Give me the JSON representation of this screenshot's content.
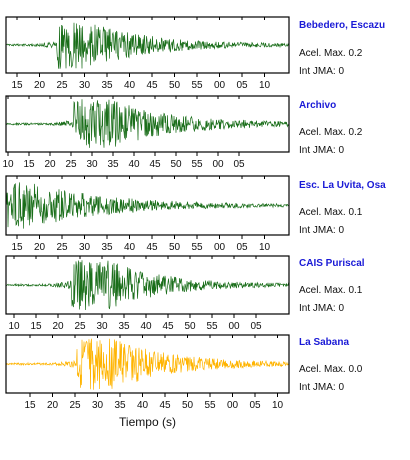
{
  "colors": {
    "trace": "#1a6e1a",
    "highlight": "#ffb400",
    "station_name": "#1a1ad6"
  },
  "xlabel": "Tiempo (s)",
  "stations": [
    {
      "name": "Bebedero, Escazu",
      "accel": "Acel. Max. 0.2",
      "jma": "Int JMA: 0",
      "ticks": [
        "15",
        "20",
        "25",
        "30",
        "35",
        "40",
        "45",
        "50",
        "55",
        "00",
        "05",
        "10"
      ]
    },
    {
      "name": "Archivo",
      "accel": "Acel. Max. 0.2",
      "jma": "Int JMA: 0",
      "ticks": [
        "10",
        "15",
        "20",
        "25",
        "30",
        "35",
        "40",
        "45",
        "50",
        "55",
        "00",
        "05"
      ]
    },
    {
      "name": "Esc. La Uvita, Osa",
      "accel": "Acel. Max. 0.1",
      "jma": "Int JMA: 0",
      "ticks": [
        "15",
        "20",
        "25",
        "30",
        "35",
        "40",
        "45",
        "50",
        "55",
        "00",
        "05",
        "10"
      ]
    },
    {
      "name": "CAIS Puriscal",
      "accel": "Acel. Max. 0.1",
      "jma": "Int JMA: 0",
      "ticks": [
        "10",
        "15",
        "20",
        "25",
        "30",
        "35",
        "40",
        "45",
        "50",
        "55",
        "00",
        "05"
      ]
    },
    {
      "name": "La Sabana",
      "accel": "Acel. Max. 0.0",
      "jma": "Int JMA: 0",
      "ticks": [
        "15",
        "20",
        "25",
        "30",
        "35",
        "40",
        "45",
        "50",
        "55",
        "00",
        "05",
        "10"
      ]
    }
  ],
  "chart_data": {
    "type": "line",
    "xlabel": "Tiempo (s)",
    "panels": [
      {
        "station": "Bebedero, Escazu",
        "peak_time_tick": "25",
        "peak_accel": 0.2,
        "ticks": [
          "15",
          "20",
          "25",
          "30",
          "35",
          "40",
          "45",
          "50",
          "55",
          "00",
          "05",
          "10"
        ]
      },
      {
        "station": "Archivo",
        "peak_time_tick": "25",
        "peak_accel": 0.2,
        "ticks": [
          "10",
          "15",
          "20",
          "25",
          "30",
          "35",
          "40",
          "45",
          "50",
          "55",
          "00",
          "05"
        ]
      },
      {
        "station": "Esc. La Uvita, Osa",
        "peak_time_tick": "10",
        "peak_accel": 0.1,
        "ticks": [
          "15",
          "20",
          "25",
          "30",
          "35",
          "40",
          "45",
          "50",
          "55",
          "00",
          "05",
          "10"
        ]
      },
      {
        "station": "CAIS Puriscal",
        "peak_time_tick": "25",
        "peak_accel": 0.1,
        "ticks": [
          "10",
          "15",
          "20",
          "25",
          "30",
          "35",
          "40",
          "45",
          "50",
          "55",
          "00",
          "05"
        ]
      },
      {
        "station": "La Sabana",
        "peak_time_tick": "27",
        "peak_accel": 0.0,
        "ticks": [
          "15",
          "20",
          "25",
          "30",
          "35",
          "40",
          "45",
          "50",
          "55",
          "00",
          "05",
          "10"
        ]
      }
    ]
  }
}
